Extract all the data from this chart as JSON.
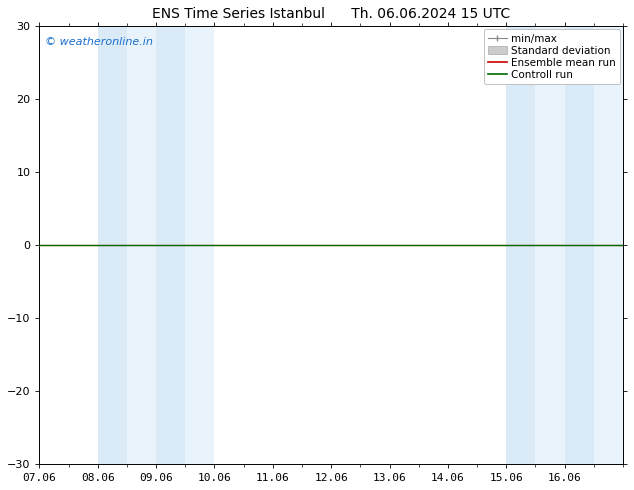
{
  "title": "ENS Time Series Istanbul",
  "title2": "Th. 06.06.2024 15 UTC",
  "watermark": "© weatheronline.in",
  "watermark_color": "#1a6ecc",
  "xlim_start": 0,
  "xlim_end": 10,
  "ylim": [
    -30,
    30
  ],
  "yticks": [
    -30,
    -20,
    -10,
    0,
    10,
    20,
    30
  ],
  "xtick_labels": [
    "07.06",
    "08.06",
    "09.06",
    "10.06",
    "11.06",
    "12.06",
    "13.06",
    "14.06",
    "15.06",
    "16.06"
  ],
  "xtick_positions": [
    0,
    1,
    2,
    3,
    4,
    5,
    6,
    7,
    8,
    9
  ],
  "shaded_bands": [
    {
      "x_start": 1.0,
      "x_end": 1.5,
      "color": "#daeaf7"
    },
    {
      "x_start": 1.5,
      "x_end": 2.0,
      "color": "#e8f3fb"
    },
    {
      "x_start": 2.0,
      "x_end": 2.5,
      "color": "#daeaf7"
    },
    {
      "x_start": 2.5,
      "x_end": 3.0,
      "color": "#e8f3fb"
    },
    {
      "x_start": 8.0,
      "x_end": 8.5,
      "color": "#daeaf7"
    },
    {
      "x_start": 8.5,
      "x_end": 9.0,
      "color": "#e8f3fb"
    },
    {
      "x_start": 9.0,
      "x_end": 9.5,
      "color": "#daeaf7"
    },
    {
      "x_start": 9.5,
      "x_end": 10.0,
      "color": "#e8f3fb"
    }
  ],
  "control_run_y": 0,
  "ensemble_mean_y": 0,
  "control_run_color": "#006600",
  "ensemble_mean_color": "#cc0000",
  "bg_color": "#ffffff",
  "font_size_title": 10,
  "font_size_axis": 8,
  "font_size_legend": 7.5,
  "font_size_watermark": 8
}
